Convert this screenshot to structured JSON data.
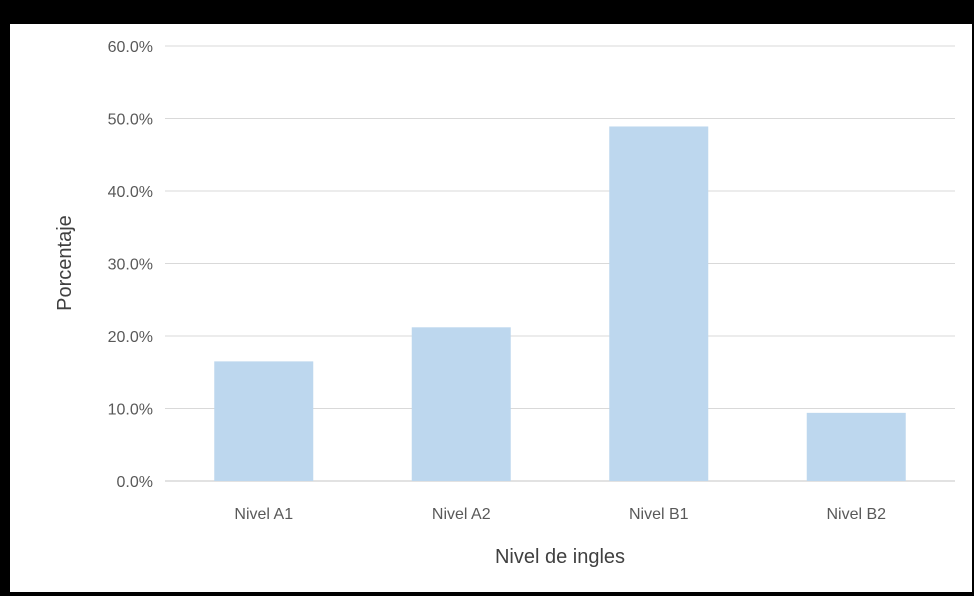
{
  "chart_data": {
    "type": "bar",
    "title": "",
    "xlabel": "Nivel de ingles",
    "ylabel": "Porcentaje",
    "categories": [
      "Nivel A1",
      "Nivel A2",
      "Nivel B1",
      "Nivel B2"
    ],
    "values": [
      16.5,
      21.2,
      48.9,
      9.4
    ],
    "ylim": [
      0,
      60
    ],
    "yticks": [
      0,
      10,
      20,
      30,
      40,
      50,
      60
    ],
    "ytick_labels": [
      "0.0%",
      "10.0%",
      "20.0%",
      "30.0%",
      "40.0%",
      "50.0%",
      "60.0%"
    ],
    "grid": true,
    "legend": "none",
    "colors": {
      "bar": "#bdd7ee",
      "grid": "#d9d9d9",
      "axis": "#d9d9d9",
      "text": "#595959",
      "frame": "#000000",
      "background": "#ffffff"
    }
  }
}
